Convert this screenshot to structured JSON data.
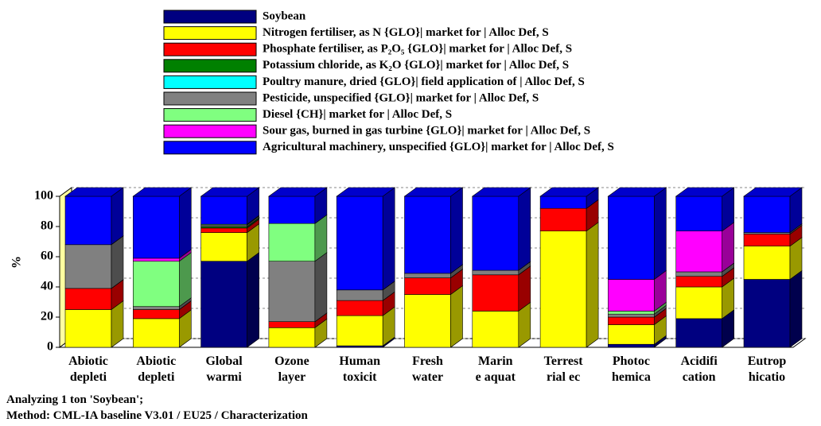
{
  "chart_data": {
    "type": "bar",
    "stacked": true,
    "ylabel": "%",
    "categories": [
      "Abiotic depleti",
      "Abiotic depleti",
      "Global warmi",
      "Ozone layer",
      "Human toxicit",
      "Fresh water",
      "Marin e aquat",
      "Terrest rial ec",
      "Photoc hemica",
      "Acidifi cation",
      "Eutrop hicatio"
    ],
    "series": [
      {
        "name": "Soybean",
        "color": "#000080",
        "values": [
          0,
          0,
          57,
          0,
          1,
          0,
          0,
          0,
          2,
          19,
          45
        ]
      },
      {
        "name": "Nitrogen fertiliser, as N {GLO}| market for | Alloc Def, S",
        "color": "#ffff00",
        "values": [
          25,
          19,
          19,
          13,
          20,
          35,
          24,
          77,
          13,
          21,
          22
        ]
      },
      {
        "name": "Phosphate fertiliser, as P₂O₅ {GLO}| market for | Alloc Def, S",
        "color": "#ff0000",
        "values": [
          14,
          6,
          3,
          4,
          10,
          11,
          24,
          15,
          5,
          7,
          8
        ]
      },
      {
        "name": "Potassium chloride, as K₂O {GLO}| market for | Alloc Def, S",
        "color": "#008000",
        "values": [
          0,
          0,
          1,
          0,
          0,
          0,
          0,
          0,
          0,
          0,
          0
        ]
      },
      {
        "name": "Poultry manure, dried {GLO}| field application of | Alloc Def, S",
        "color": "#00ffff",
        "values": [
          0,
          0,
          0,
          0,
          0,
          0,
          0,
          0,
          0,
          0,
          0
        ]
      },
      {
        "name": "Pesticide, unspecified {GLO}| market for | Alloc Def, S",
        "color": "#808080",
        "values": [
          29,
          2,
          1,
          40,
          7,
          3,
          3,
          0,
          2,
          3,
          1
        ]
      },
      {
        "name": "Diesel {CH}| market for | Alloc Def, S",
        "color": "#80ff80",
        "values": [
          0,
          30,
          0.5,
          25,
          0,
          0,
          0,
          0,
          2,
          0,
          0
        ]
      },
      {
        "name": "Sour gas, burned in gas turbine {GLO}| market for | Alloc Def, S",
        "color": "#ff00ff",
        "values": [
          0,
          2,
          0,
          0,
          0,
          0,
          0,
          0,
          21,
          27,
          0
        ]
      },
      {
        "name": "Agricultural machinery, unspecified {GLO}| market for | Alloc Def, S",
        "color": "#0000ff",
        "values": [
          32,
          41,
          18.5,
          18,
          62,
          51,
          49,
          8,
          55,
          23,
          24
        ]
      }
    ],
    "ylim": [
      0,
      100
    ],
    "yticks": [
      0,
      20,
      40,
      60,
      80,
      100
    ],
    "grid": true,
    "footer": [
      "Analyzing 1 ton 'Soybean';",
      "Method: CML-IA baseline V3.01 / EU25 / Characterization"
    ]
  }
}
